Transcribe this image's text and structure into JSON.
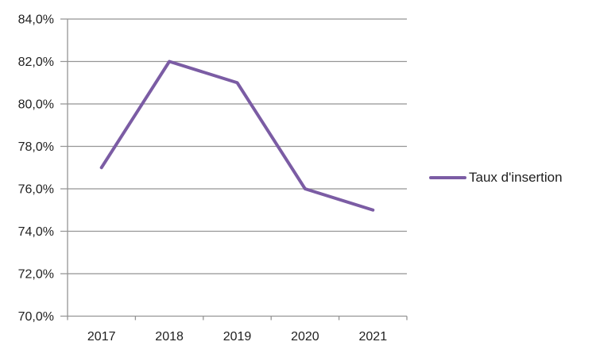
{
  "chart_data": {
    "type": "line",
    "title": "",
    "categories": [
      "2017",
      "2018",
      "2019",
      "2020",
      "2021"
    ],
    "series": [
      {
        "name": "Taux d'insertion",
        "values": [
          77.0,
          82.0,
          81.0,
          76.0,
          75.0
        ],
        "color": "#7B5CA4"
      }
    ],
    "ylim": [
      70,
      84
    ],
    "ytick_step": 2,
    "ytick_labels": [
      "70,0%",
      "72,0%",
      "74,0%",
      "76,0%",
      "78,0%",
      "80,0%",
      "82,0%",
      "84,0%"
    ],
    "xlabel": "",
    "ylabel": "",
    "grid": "horizontal",
    "legend_position": "right",
    "value_format": "percent-fr",
    "colors": {
      "grid": "#959595",
      "axis": "#959595",
      "text": "#1F1F1F"
    }
  }
}
